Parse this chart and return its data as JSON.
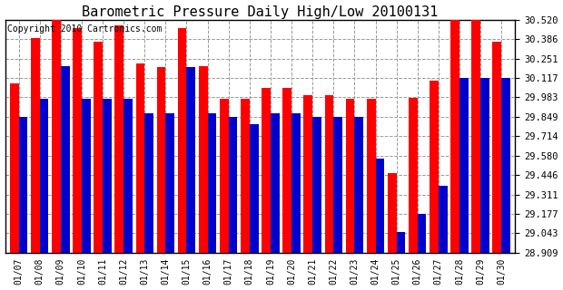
{
  "title": "Barometric Pressure Daily High/Low 20100131",
  "copyright": "Copyright 2010 Cartronics.com",
  "dates": [
    "01/07",
    "01/08",
    "01/09",
    "01/10",
    "01/11",
    "01/12",
    "01/13",
    "01/14",
    "01/15",
    "01/16",
    "01/17",
    "01/18",
    "01/19",
    "01/20",
    "01/21",
    "01/22",
    "01/23",
    "01/24",
    "01/25",
    "01/26",
    "01/27",
    "01/28",
    "01/29",
    "01/30"
  ],
  "highs": [
    30.08,
    30.39,
    30.52,
    30.46,
    30.37,
    30.48,
    30.22,
    30.19,
    30.46,
    30.2,
    29.97,
    29.97,
    30.05,
    30.05,
    30.0,
    30.0,
    29.97,
    29.97,
    29.46,
    29.98,
    30.1,
    30.53,
    30.52,
    30.37
  ],
  "lows": [
    29.85,
    29.97,
    30.2,
    29.97,
    29.97,
    29.97,
    29.87,
    29.87,
    30.19,
    29.87,
    29.85,
    29.8,
    29.87,
    29.87,
    29.85,
    29.85,
    29.85,
    29.56,
    29.05,
    29.18,
    29.37,
    30.12,
    30.12,
    30.12
  ],
  "high_color": "#ff0000",
  "low_color": "#0000cc",
  "bg_color": "#ffffff",
  "grid_color": "#999999",
  "ymin": 28.909,
  "ymax": 30.52,
  "yticks": [
    28.909,
    29.043,
    29.177,
    29.311,
    29.446,
    29.58,
    29.714,
    29.849,
    29.983,
    30.117,
    30.251,
    30.386,
    30.52
  ],
  "title_fontsize": 11,
  "copyright_fontsize": 7
}
